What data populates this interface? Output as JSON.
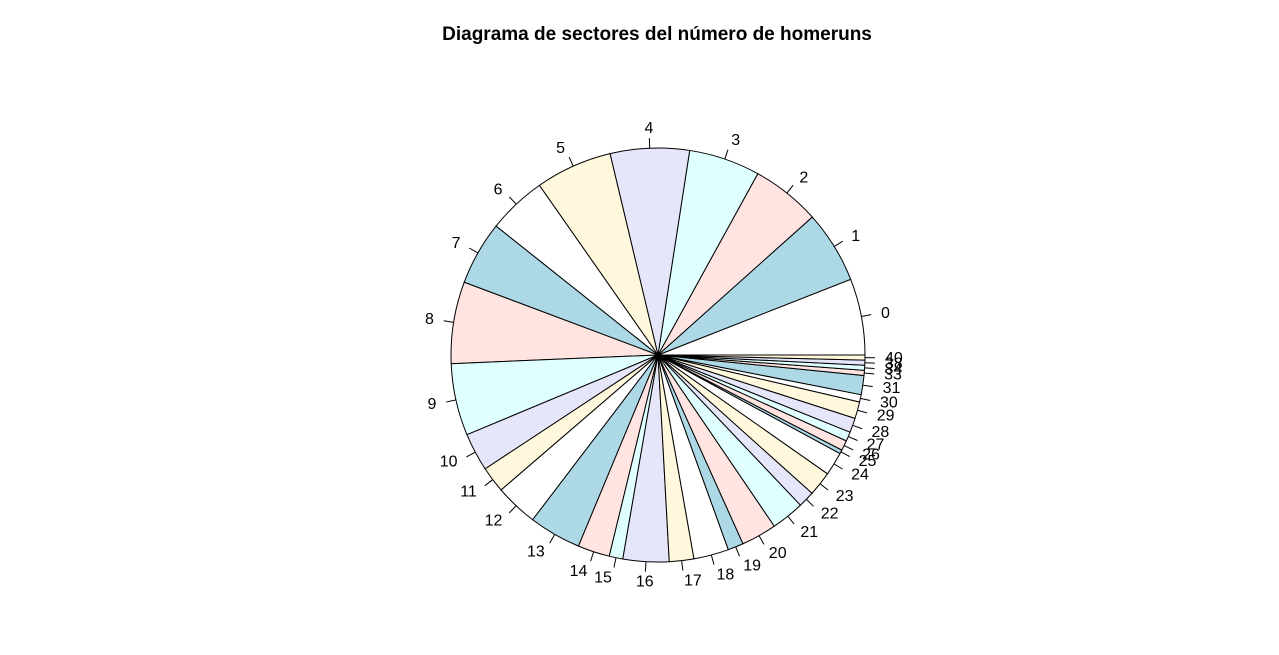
{
  "chart_data": {
    "type": "pie",
    "title": "Diagrama de sectores del número de homeruns",
    "categories": [
      "0",
      "1",
      "2",
      "3",
      "4",
      "5",
      "6",
      "7",
      "8",
      "9",
      "10",
      "11",
      "12",
      "13",
      "14",
      "15",
      "16",
      "17",
      "18",
      "19",
      "20",
      "21",
      "22",
      "23",
      "24",
      "25",
      "26",
      "27",
      "28",
      "29",
      "30",
      "31",
      "33",
      "34",
      "38",
      "40"
    ],
    "values": [
      196,
      186,
      177,
      183,
      203,
      197,
      151,
      164,
      210,
      185,
      98,
      67,
      110,
      134,
      82,
      35,
      118,
      63,
      90,
      40,
      91,
      85,
      42,
      63,
      60,
      10,
      26,
      24,
      37,
      43,
      19,
      49,
      13,
      13,
      13,
      13
    ],
    "colors": [
      "#ffffff",
      "#add8e6",
      "#ffe4e1",
      "#e0ffff",
      "#e6e6fa",
      "#fff8dc"
    ],
    "start_angle_deg": 0,
    "direction": "counterclockwise"
  }
}
